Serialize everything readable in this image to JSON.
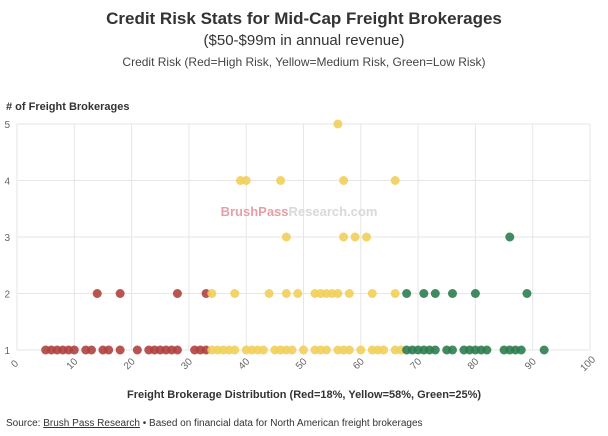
{
  "chart_data": {
    "type": "scatter",
    "title": "Credit Risk Stats for Mid-Cap Freight Brokerages",
    "subtitle": "($50-$99m in annual revenue)",
    "subtitle2": "Credit Risk (Red=High Risk, Yellow=Medium Risk, Green=Low Risk)",
    "ylabel": "# of Freight Brokerages",
    "xlabel": "Freight Brokerage Distribution (Red=18%, Yellow=58%, Green=25%)",
    "xlim": [
      0,
      100
    ],
    "ylim": [
      1,
      5
    ],
    "xticks": [
      0,
      10,
      20,
      30,
      40,
      50,
      60,
      70,
      80,
      90,
      100
    ],
    "yticks": [
      1,
      2,
      3,
      4,
      5
    ],
    "grid": true,
    "series": [
      {
        "color": "#b0413e",
        "points": [
          {
            "x": 5,
            "y": 1
          },
          {
            "x": 6,
            "y": 1
          },
          {
            "x": 7,
            "y": 1
          },
          {
            "x": 8,
            "y": 1
          },
          {
            "x": 9,
            "y": 1
          },
          {
            "x": 10,
            "y": 1
          },
          {
            "x": 12,
            "y": 1
          },
          {
            "x": 13,
            "y": 1
          },
          {
            "x": 15,
            "y": 1
          },
          {
            "x": 16,
            "y": 1
          },
          {
            "x": 18,
            "y": 1
          },
          {
            "x": 21,
            "y": 1
          },
          {
            "x": 23,
            "y": 1
          },
          {
            "x": 24,
            "y": 1
          },
          {
            "x": 25,
            "y": 1
          },
          {
            "x": 26,
            "y": 1
          },
          {
            "x": 27,
            "y": 1
          },
          {
            "x": 28,
            "y": 1
          },
          {
            "x": 31,
            "y": 1
          },
          {
            "x": 32,
            "y": 1
          },
          {
            "x": 33,
            "y": 1
          },
          {
            "x": 14,
            "y": 2
          },
          {
            "x": 18,
            "y": 2
          },
          {
            "x": 28,
            "y": 2
          },
          {
            "x": 33,
            "y": 2
          }
        ]
      },
      {
        "color": "#f2cf5b",
        "points": [
          {
            "x": 34,
            "y": 1
          },
          {
            "x": 35,
            "y": 1
          },
          {
            "x": 36,
            "y": 1
          },
          {
            "x": 37,
            "y": 1
          },
          {
            "x": 38,
            "y": 1
          },
          {
            "x": 40,
            "y": 1
          },
          {
            "x": 41,
            "y": 1
          },
          {
            "x": 42,
            "y": 1
          },
          {
            "x": 43,
            "y": 1
          },
          {
            "x": 45,
            "y": 1
          },
          {
            "x": 46,
            "y": 1
          },
          {
            "x": 47,
            "y": 1
          },
          {
            "x": 48,
            "y": 1
          },
          {
            "x": 50,
            "y": 1
          },
          {
            "x": 52,
            "y": 1
          },
          {
            "x": 53,
            "y": 1
          },
          {
            "x": 54,
            "y": 1
          },
          {
            "x": 56,
            "y": 1
          },
          {
            "x": 57,
            "y": 1
          },
          {
            "x": 58,
            "y": 1
          },
          {
            "x": 60,
            "y": 1
          },
          {
            "x": 62,
            "y": 1
          },
          {
            "x": 63,
            "y": 1
          },
          {
            "x": 64,
            "y": 1
          },
          {
            "x": 66,
            "y": 1
          },
          {
            "x": 67,
            "y": 1
          },
          {
            "x": 34,
            "y": 2
          },
          {
            "x": 38,
            "y": 2
          },
          {
            "x": 44,
            "y": 2
          },
          {
            "x": 47,
            "y": 2
          },
          {
            "x": 49,
            "y": 2
          },
          {
            "x": 52,
            "y": 2
          },
          {
            "x": 53,
            "y": 2
          },
          {
            "x": 54,
            "y": 2
          },
          {
            "x": 55,
            "y": 2
          },
          {
            "x": 56,
            "y": 2
          },
          {
            "x": 58,
            "y": 2
          },
          {
            "x": 62,
            "y": 2
          },
          {
            "x": 66,
            "y": 2
          },
          {
            "x": 47,
            "y": 3
          },
          {
            "x": 57,
            "y": 3
          },
          {
            "x": 59,
            "y": 3
          },
          {
            "x": 61,
            "y": 3
          },
          {
            "x": 39,
            "y": 4
          },
          {
            "x": 40,
            "y": 4
          },
          {
            "x": 46,
            "y": 4
          },
          {
            "x": 57,
            "y": 4
          },
          {
            "x": 66,
            "y": 4
          },
          {
            "x": 56,
            "y": 5
          }
        ]
      },
      {
        "color": "#2e7d4f",
        "points": [
          {
            "x": 68,
            "y": 1
          },
          {
            "x": 69,
            "y": 1
          },
          {
            "x": 70,
            "y": 1
          },
          {
            "x": 71,
            "y": 1
          },
          {
            "x": 72,
            "y": 1
          },
          {
            "x": 73,
            "y": 1
          },
          {
            "x": 75,
            "y": 1
          },
          {
            "x": 76,
            "y": 1
          },
          {
            "x": 78,
            "y": 1
          },
          {
            "x": 79,
            "y": 1
          },
          {
            "x": 80,
            "y": 1
          },
          {
            "x": 81,
            "y": 1
          },
          {
            "x": 82,
            "y": 1
          },
          {
            "x": 85,
            "y": 1
          },
          {
            "x": 86,
            "y": 1
          },
          {
            "x": 87,
            "y": 1
          },
          {
            "x": 88,
            "y": 1
          },
          {
            "x": 92,
            "y": 1
          },
          {
            "x": 68,
            "y": 2
          },
          {
            "x": 71,
            "y": 2
          },
          {
            "x": 73,
            "y": 2
          },
          {
            "x": 76,
            "y": 2
          },
          {
            "x": 80,
            "y": 2
          },
          {
            "x": 89,
            "y": 2
          },
          {
            "x": 86,
            "y": 3
          }
        ]
      }
    ]
  },
  "watermark": {
    "part1": "BrushPass",
    "part2": "Research.com"
  },
  "footer": {
    "source_label": "Source: ",
    "source_link": "Brush Pass Research",
    "note": " • Based on financial data for North American freight brokerages"
  }
}
